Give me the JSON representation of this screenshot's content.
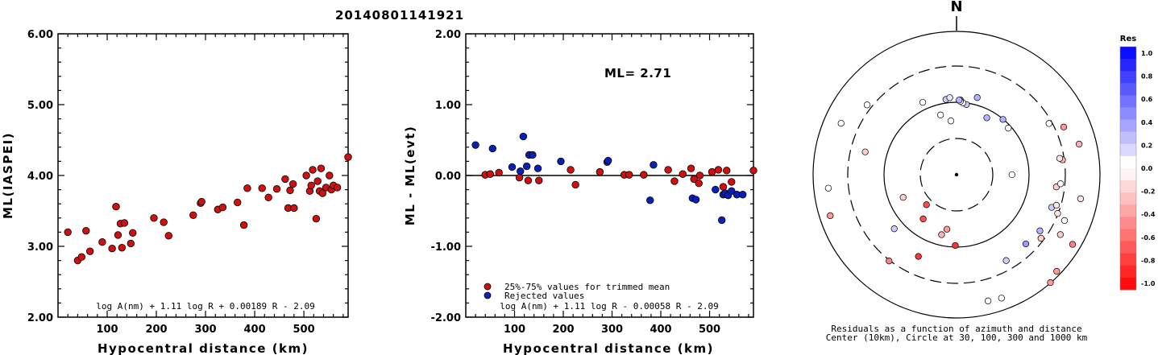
{
  "title": "20140801141921",
  "chart_data": [
    {
      "type": "scatter",
      "id": "left",
      "xlabel": "Hypocentral distance (km)",
      "ylabel": "ML(IASPEI)",
      "xlim": [
        0,
        590
      ],
      "ylim": [
        2.0,
        6.0
      ],
      "xticks": [
        "100",
        "200",
        "300",
        "400",
        "500"
      ],
      "yticks": [
        "2.00",
        "3.00",
        "4.00",
        "5.00",
        "6.00"
      ],
      "formula": "log A(nm) + 1.11 log R + 0.00189 R - 2.09",
      "color": "#d01010",
      "points": [
        [
          20,
          3.2
        ],
        [
          40,
          2.8
        ],
        [
          48,
          2.85
        ],
        [
          57,
          3.22
        ],
        [
          65,
          2.93
        ],
        [
          90,
          3.06
        ],
        [
          110,
          2.97
        ],
        [
          118,
          3.56
        ],
        [
          122,
          3.16
        ],
        [
          127,
          3.32
        ],
        [
          130,
          2.98
        ],
        [
          135,
          3.33
        ],
        [
          148,
          3.04
        ],
        [
          152,
          3.19
        ],
        [
          195,
          3.4
        ],
        [
          215,
          3.34
        ],
        [
          225,
          3.15
        ],
        [
          275,
          3.44
        ],
        [
          290,
          3.61
        ],
        [
          292,
          3.63
        ],
        [
          325,
          3.52
        ],
        [
          335,
          3.55
        ],
        [
          365,
          3.62
        ],
        [
          378,
          3.3
        ],
        [
          385,
          3.82
        ],
        [
          415,
          3.82
        ],
        [
          428,
          3.69
        ],
        [
          445,
          3.81
        ],
        [
          462,
          3.95
        ],
        [
          468,
          3.54
        ],
        [
          472,
          3.79
        ],
        [
          478,
          3.88
        ],
        [
          480,
          3.54
        ],
        [
          505,
          4.0
        ],
        [
          512,
          3.78
        ],
        [
          515,
          3.86
        ],
        [
          518,
          4.08
        ],
        [
          525,
          3.39
        ],
        [
          528,
          3.92
        ],
        [
          532,
          3.78
        ],
        [
          535,
          4.1
        ],
        [
          538,
          3.75
        ],
        [
          545,
          3.83
        ],
        [
          552,
          4.0
        ],
        [
          556,
          3.8
        ],
        [
          560,
          3.86
        ],
        [
          568,
          3.83
        ],
        [
          590,
          4.26
        ]
      ]
    },
    {
      "type": "scatter",
      "id": "middle",
      "xlabel": "Hypocentral distance (km)",
      "ylabel": "ML - ML(evt)",
      "xlim": [
        0,
        590
      ],
      "ylim": [
        -2.0,
        2.0
      ],
      "xticks": [
        "100",
        "200",
        "300",
        "400",
        "500"
      ],
      "yticks": [
        "-2.00",
        "-1.00",
        "0.00",
        "1.00",
        "2.00"
      ],
      "annotation": "ML= 2.71",
      "formula": "log A(nm) + 1.11 log R - 0.00058 R - 2.09",
      "legend": [
        {
          "label": "25%-75% values for trimmed mean",
          "color": "#d01010"
        },
        {
          "label": "Rejected values",
          "color": "#0a1fb5"
        }
      ],
      "series": [
        {
          "name": "25%-75% values for trimmed mean",
          "color": "#d01010",
          "points": [
            [
              40,
              0.01
            ],
            [
              50,
              0.02
            ],
            [
              68,
              0.04
            ],
            [
              110,
              -0.03
            ],
            [
              128,
              -0.07
            ],
            [
              150,
              -0.07
            ],
            [
              215,
              0.08
            ],
            [
              225,
              -0.13
            ],
            [
              275,
              0.05
            ],
            [
              325,
              0.01
            ],
            [
              335,
              0.01
            ],
            [
              365,
              0.01
            ],
            [
              415,
              0.08
            ],
            [
              428,
              -0.08
            ],
            [
              445,
              0.02
            ],
            [
              462,
              0.1
            ],
            [
              468,
              -0.05
            ],
            [
              478,
              -0.11
            ],
            [
              480,
              0.0
            ],
            [
              505,
              0.05
            ],
            [
              518,
              0.08
            ],
            [
              528,
              -0.16
            ],
            [
              535,
              0.07
            ],
            [
              545,
              -0.09
            ],
            [
              590,
              0.07
            ]
          ]
        },
        {
          "name": "Rejected values",
          "color": "#0a1fb5",
          "points": [
            [
              20,
              0.43
            ],
            [
              55,
              0.38
            ],
            [
              95,
              0.12
            ],
            [
              112,
              0.06
            ],
            [
              118,
              0.55
            ],
            [
              125,
              0.13
            ],
            [
              130,
              0.29
            ],
            [
              137,
              0.29
            ],
            [
              148,
              0.1
            ],
            [
              195,
              0.2
            ],
            [
              290,
              0.19
            ],
            [
              292,
              0.21
            ],
            [
              378,
              -0.35
            ],
            [
              385,
              0.15
            ],
            [
              465,
              -0.32
            ],
            [
              472,
              -0.34
            ],
            [
              512,
              -0.2
            ],
            [
              525,
              -0.63
            ],
            [
              528,
              -0.27
            ],
            [
              532,
              -0.25
            ],
            [
              538,
              -0.28
            ],
            [
              545,
              -0.22
            ],
            [
              556,
              -0.27
            ],
            [
              568,
              -0.27
            ]
          ]
        }
      ]
    },
    {
      "type": "scatter",
      "id": "polar",
      "north_label": "N",
      "caption_line1": "Residuals as a function of azimuth and distance",
      "caption_line2": "Center (10km), Circle at 30, 100, 300 and 1000 km",
      "colorbar_title": "Res",
      "colorbar_ticks": [
        "1.0",
        "0.8",
        "0.6",
        "0.4",
        "0.2",
        "0.0",
        "-0.2",
        "-0.4",
        "-0.6",
        "-0.8",
        "-1.0"
      ],
      "points": [
        [
          0,
          0.0,
          0.0
        ],
        [
          190,
          43,
          -0.4
        ],
        [
          217,
          43,
          -0.7
        ],
        [
          205,
          70,
          -0.8
        ],
        [
          225,
          33,
          -0.7
        ],
        [
          40,
          56,
          0.3
        ],
        [
          120,
          93,
          -0.2
        ],
        [
          121,
          105,
          -0.5
        ],
        [
          134,
          108,
          -0.4
        ],
        [
          160,
          102,
          0.0
        ],
        [
          166,
          101,
          0.0
        ],
        [
          150,
          77,
          0.2
        ],
        [
          139,
          111,
          -0.4
        ],
        [
          135,
          76,
          0.4
        ],
        [
          127,
          82,
          -0.2
        ],
        [
          124,
          78,
          0.3
        ],
        [
          113,
          91,
          0.0
        ],
        [
          111,
          84,
          -0.1
        ],
        [
          109,
          78,
          0.2
        ],
        [
          107,
          81,
          -0.1
        ],
        [
          101,
          98,
          -0.1
        ],
        [
          97,
          78,
          -0.2
        ],
        [
          95,
          81,
          0.0
        ],
        [
          90,
          43,
          0.0
        ],
        [
          82,
          83,
          -0.3
        ],
        [
          81,
          81,
          -0.1
        ],
        [
          76,
          98,
          -0.3
        ],
        [
          66,
          91,
          -0.4
        ],
        [
          61,
          82,
          0.0
        ],
        [
          48,
          54,
          0.0
        ],
        [
          28,
          50,
          0.3
        ],
        [
          8,
          55,
          0.2
        ],
        [
          354,
          42,
          0.0
        ],
        [
          345,
          48,
          0.0
        ],
        [
          352,
          59,
          0.2
        ],
        [
          335,
          62,
          0.0
        ],
        [
          355,
          60,
          0.1
        ],
        [
          3,
          58,
          0.4
        ],
        [
          5,
          56,
          0.0
        ],
        [
          3,
          57,
          0.0
        ],
        [
          2,
          58,
          0.3
        ],
        [
          181,
          55,
          -0.8
        ],
        [
          194,
          48,
          -0.3
        ],
        [
          218,
          85,
          -0.5
        ],
        [
          229,
          64,
          0.2
        ],
        [
          247,
          45,
          -0.2
        ],
        [
          252,
          103,
          -0.4
        ],
        [
          264,
          100,
          0.0
        ],
        [
          284,
          73,
          -0.2
        ],
        [
          294,
          98,
          0.0
        ],
        [
          308,
          88,
          0.0
        ],
        [
          15,
          62,
          0.3
        ]
      ]
    }
  ]
}
